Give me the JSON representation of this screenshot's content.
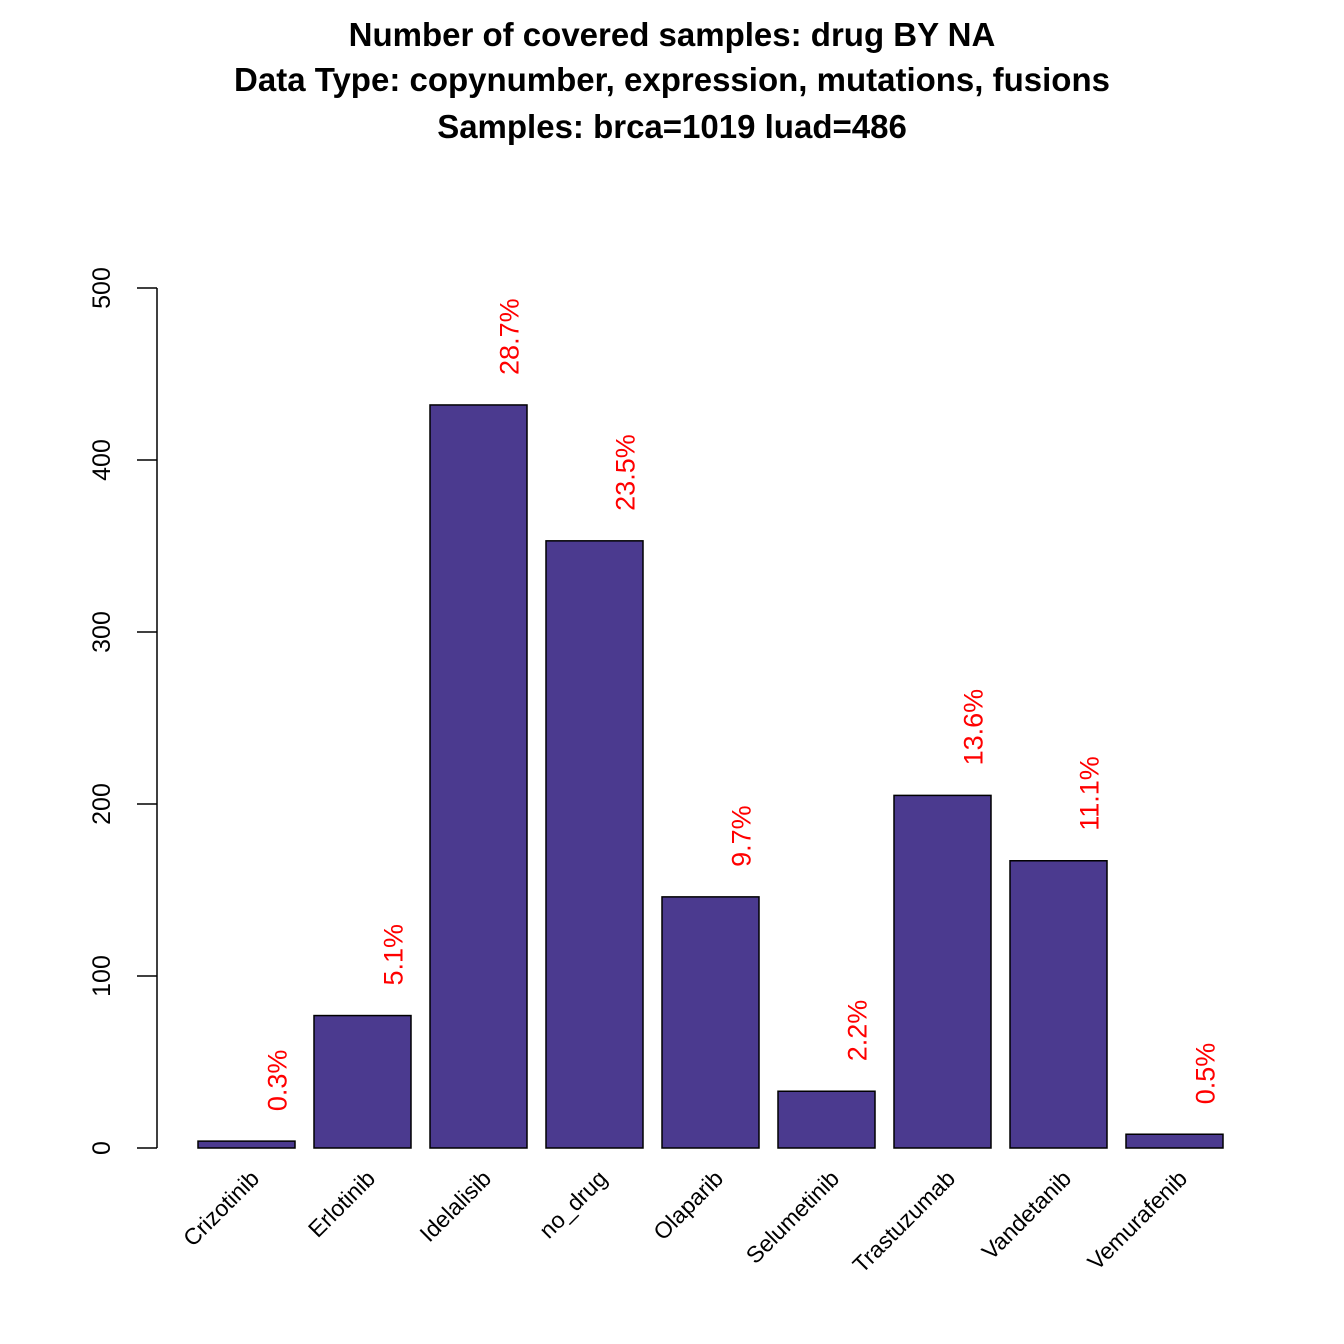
{
  "chart_data": {
    "type": "bar",
    "title_lines": [
      "Number of covered samples: drug BY NA",
      "Data Type: copynumber, expression, mutations, fusions",
      "Samples: brca=1019 luad=486"
    ],
    "categories": [
      "Crizotinib",
      "Erlotinib",
      "Idelalisib",
      "no_drug",
      "Olaparib",
      "Selumetinib",
      "Trastuzumab",
      "Vandetanib",
      "Vemurafenib"
    ],
    "values": [
      4,
      77,
      432,
      353,
      146,
      33,
      205,
      167,
      8
    ],
    "bar_labels": [
      "0.3%",
      "5.1%",
      "28.7%",
      "23.5%",
      "9.7%",
      "2.2%",
      "13.6%",
      "11.1%",
      "0.5%"
    ],
    "ylim": [
      0,
      500
    ],
    "yticks": [
      0,
      100,
      200,
      300,
      400,
      500
    ],
    "xlabel": "",
    "ylabel": "",
    "grid": false,
    "colors": {
      "bar_fill": "#4b3a8f",
      "bar_stroke": "#000000",
      "label": "#ff0000",
      "axis": "#000000"
    }
  }
}
